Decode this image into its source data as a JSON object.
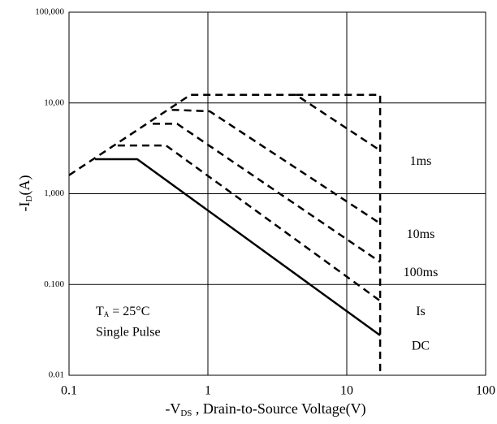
{
  "chart_data": {
    "type": "line",
    "xlabel": {
      "main": "-V",
      "sub": "DS",
      "rest": " , Drain-to-Source Voltage(V)"
    },
    "ylabel": {
      "main": "-I",
      "sub": "D",
      "rest": "(A)"
    },
    "annotation": {
      "main": "T",
      "sub": "A",
      "rest": " = 25°C",
      "line2": "Single Pulse"
    },
    "log_x": true,
    "log_y": true,
    "grid": true,
    "xlim": [
      0.1,
      100
    ],
    "xticks": [
      0.1,
      1,
      10,
      100
    ],
    "ylim": [
      0.01,
      100
    ],
    "yticks": [
      0.01,
      {
        "value": 0.1,
        "label": "0.100"
      },
      {
        "value": 1,
        "label": "1,000"
      },
      {
        "value": 10,
        "label": "10,00"
      },
      {
        "value": 100,
        "label": "100,000"
      }
    ],
    "series": [
      {
        "name": "1ms",
        "color": "#000000",
        "dashed": true,
        "x": [
          0.1,
          0.75,
          4.3,
          17.4
        ],
        "values": [
          1.6,
          12.3,
          12.3,
          3.0
        ]
      },
      {
        "name": "10ms",
        "color": "#000000",
        "dashed": true,
        "x": [
          0.55,
          1.03,
          17.4
        ],
        "values": [
          8.4,
          8.1,
          0.47
        ]
      },
      {
        "name": "100ms",
        "color": "#000000",
        "dashed": true,
        "x": [
          0.4,
          0.6,
          17.4
        ],
        "values": [
          5.9,
          5.9,
          0.177
        ]
      },
      {
        "name": "Is",
        "color": "#000000",
        "dashed": true,
        "x": [
          0.224,
          0.5,
          17.4
        ],
        "values": [
          3.4,
          3.4,
          0.066
        ]
      },
      {
        "name": "DC",
        "color": "#000000",
        "dashed": false,
        "x": [
          0.154,
          0.31,
          17.4
        ],
        "values": [
          2.4,
          2.4,
          0.0275
        ]
      },
      {
        "color": "#000000",
        "dashed": true,
        "x": [
          4.3,
          17.4,
          17.4
        ],
        "values": [
          12.3,
          12.3,
          0.01
        ]
      }
    ]
  }
}
